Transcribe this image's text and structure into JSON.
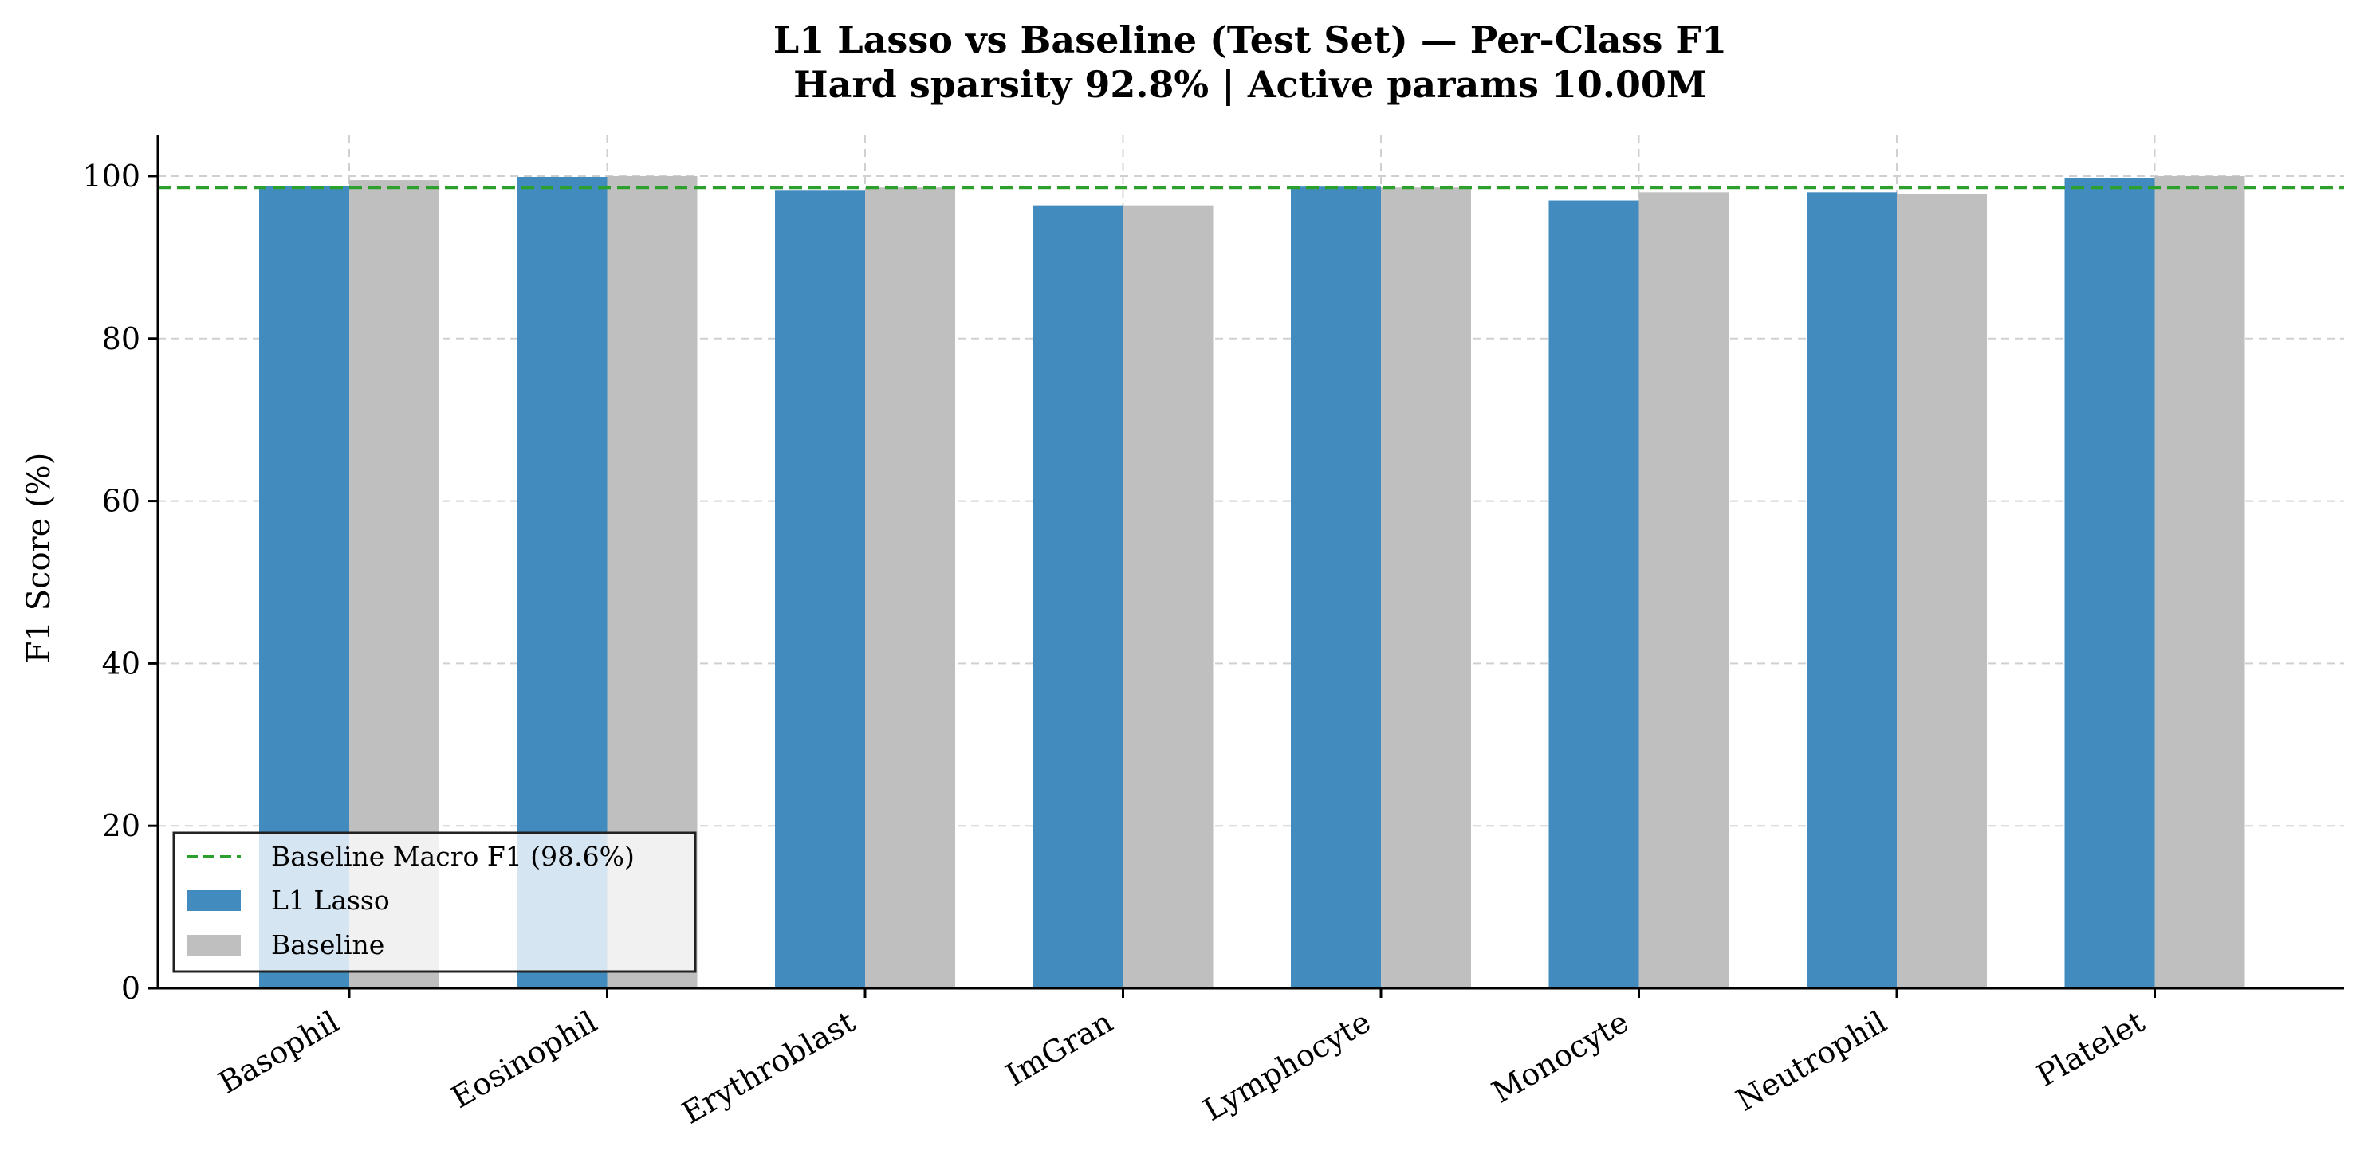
{
  "chart_data": {
    "type": "bar",
    "title": "L1 Lasso vs Baseline (Test Set) — Per-Class F1",
    "subtitle": "Hard sparsity 92.8%  |  Active params 10.00M",
    "xlabel": "",
    "ylabel": "F1 Score (%)",
    "ylim": [
      0,
      105
    ],
    "yticks": [
      0,
      20,
      40,
      60,
      80,
      100
    ],
    "grid": true,
    "legend_position": "lower-left",
    "categories": [
      "Basophil",
      "Eosinophil",
      "Erythroblast",
      "ImGran",
      "Lymphocyte",
      "Monocyte",
      "Neutrophil",
      "Platelet"
    ],
    "series": [
      {
        "name": "L1 Lasso",
        "color": "#428bbe",
        "values": [
          98.8,
          99.9,
          98.2,
          96.4,
          98.7,
          97.0,
          98.0,
          99.8
        ]
      },
      {
        "name": "Baseline",
        "color": "#bfbfbf",
        "values": [
          99.5,
          100.0,
          98.6,
          96.4,
          98.6,
          98.0,
          97.8,
          100.0
        ]
      }
    ],
    "reference_line": {
      "name": "Baseline Macro F1 (98.6%)",
      "value": 98.6,
      "color": "#2ca02c",
      "style": "dashed"
    }
  }
}
